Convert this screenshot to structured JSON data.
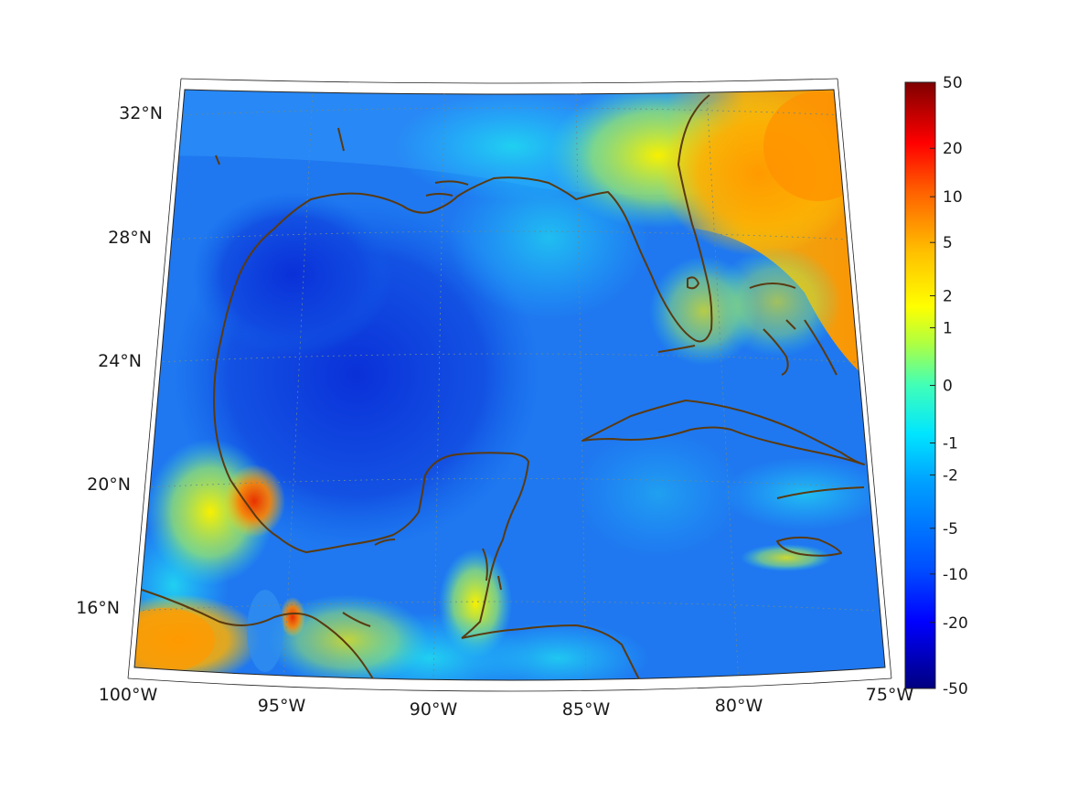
{
  "map": {
    "projection": "lambert-conformal-conic",
    "lon_range": [
      -100,
      -75
    ],
    "lat_range": [
      14,
      33
    ],
    "grid": true,
    "coastline_color": "#5a3a10",
    "lon_ticks": [
      {
        "value": -100,
        "label": "100°W"
      },
      {
        "value": -95,
        "label": "95°W"
      },
      {
        "value": -90,
        "label": "90°W"
      },
      {
        "value": -85,
        "label": "85°W"
      },
      {
        "value": -80,
        "label": "80°W"
      },
      {
        "value": -75,
        "label": "75°W"
      }
    ],
    "lat_ticks": [
      {
        "value": 32,
        "label": "32°N"
      },
      {
        "value": 28,
        "label": "28°N"
      },
      {
        "value": 24,
        "label": "24°N"
      },
      {
        "value": 20,
        "label": "20°N"
      },
      {
        "value": 16,
        "label": "16°N"
      }
    ]
  },
  "colorbar": {
    "colormap": "jet",
    "placement": "right",
    "ticks": [
      {
        "value": 50,
        "label": "50"
      },
      {
        "value": 20,
        "label": "20"
      },
      {
        "value": 10,
        "label": "10"
      },
      {
        "value": 5,
        "label": "5"
      },
      {
        "value": 2,
        "label": "2"
      },
      {
        "value": 1,
        "label": "1"
      },
      {
        "value": 0,
        "label": "0"
      },
      {
        "value": -1,
        "label": "-1"
      },
      {
        "value": -2,
        "label": "-2"
      },
      {
        "value": -5,
        "label": "-5"
      },
      {
        "value": -10,
        "label": "-10"
      },
      {
        "value": -20,
        "label": "-20"
      },
      {
        "value": -50,
        "label": "-50"
      }
    ]
  }
}
